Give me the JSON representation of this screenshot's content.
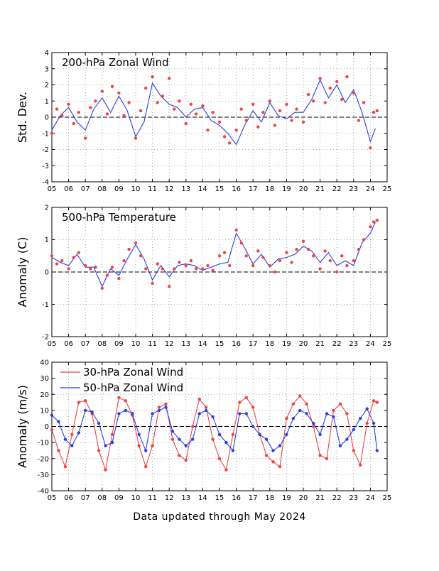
{
  "footer": "Data updated through May 2024",
  "colors": {
    "red": "#ee4444",
    "blue": "#2a3fe0",
    "zero": "#000000",
    "grid": "#999999"
  },
  "chart_data": [
    {
      "type": "scatter",
      "title": "200-hPa Zonal Wind",
      "ylabel": "Std. Dev.",
      "xlim": [
        2005,
        2025
      ],
      "ylim": [
        -4,
        4
      ],
      "x_ticks": [
        "05",
        "06",
        "07",
        "08",
        "09",
        "10",
        "11",
        "12",
        "13",
        "14",
        "15",
        "16",
        "17",
        "18",
        "19",
        "20",
        "21",
        "22",
        "23",
        "24",
        "25"
      ],
      "y_ticks": [
        "-4",
        "-3",
        "-2",
        "-1",
        "0",
        "1",
        "2",
        "3",
        "4"
      ],
      "grid": true,
      "series": [
        {
          "style": "line",
          "color": "#2a3fe0",
          "x": [
            2005.0,
            2005.5,
            2006.0,
            2006.5,
            2007.0,
            2007.5,
            2008.0,
            2008.5,
            2009.0,
            2009.5,
            2010.0,
            2010.5,
            2011.0,
            2011.5,
            2012.0,
            2012.5,
            2013.0,
            2013.5,
            2014.0,
            2014.5,
            2015.0,
            2015.5,
            2016.0,
            2016.5,
            2017.0,
            2017.5,
            2018.0,
            2018.5,
            2019.0,
            2019.5,
            2020.0,
            2020.5,
            2021.0,
            2021.5,
            2022.0,
            2022.5,
            2023.0,
            2023.5,
            2024.0,
            2024.3
          ],
          "y": [
            -0.8,
            0.1,
            0.6,
            -0.3,
            -0.8,
            0.5,
            1.2,
            0.3,
            1.3,
            0.4,
            -1.2,
            -0.3,
            2.1,
            1.3,
            0.8,
            0.6,
            0.0,
            0.5,
            0.6,
            -0.2,
            -0.5,
            -1.0,
            -1.7,
            -0.5,
            0.4,
            -0.3,
            0.9,
            0.1,
            -0.1,
            0.3,
            0.3,
            1.1,
            2.3,
            1.2,
            2.0,
            0.9,
            1.7,
            0.3,
            -1.5,
            -0.7
          ]
        },
        {
          "style": "markers",
          "color": "#ee4444",
          "x": [
            2005.0,
            2005.3,
            2005.6,
            2006.0,
            2006.3,
            2006.6,
            2007.0,
            2007.3,
            2007.6,
            2008.0,
            2008.3,
            2008.6,
            2009.0,
            2009.3,
            2009.6,
            2010.0,
            2010.3,
            2010.6,
            2011.0,
            2011.3,
            2011.6,
            2012.0,
            2012.3,
            2012.6,
            2013.0,
            2013.3,
            2013.6,
            2014.0,
            2014.3,
            2014.6,
            2015.0,
            2015.3,
            2015.6,
            2016.0,
            2016.3,
            2016.6,
            2017.0,
            2017.3,
            2017.6,
            2018.0,
            2018.3,
            2018.6,
            2019.0,
            2019.3,
            2019.6,
            2020.0,
            2020.3,
            2020.6,
            2021.0,
            2021.3,
            2021.6,
            2022.0,
            2022.3,
            2022.6,
            2023.0,
            2023.3,
            2023.6,
            2024.0,
            2024.2,
            2024.4
          ],
          "y": [
            -1.0,
            0.5,
            0.1,
            0.8,
            -0.4,
            0.3,
            -1.3,
            0.6,
            1.0,
            1.6,
            0.2,
            1.9,
            1.5,
            0.1,
            0.9,
            -1.3,
            0.4,
            1.8,
            2.5,
            0.9,
            1.3,
            2.4,
            0.5,
            1.0,
            -0.4,
            0.8,
            0.2,
            0.7,
            -0.8,
            0.3,
            -0.3,
            -1.2,
            -1.6,
            -0.8,
            0.5,
            -0.2,
            0.8,
            -0.6,
            0.3,
            1.0,
            -0.5,
            0.4,
            0.8,
            -0.2,
            0.5,
            -0.3,
            1.4,
            1.0,
            2.4,
            0.9,
            1.8,
            2.2,
            1.1,
            2.5,
            1.5,
            -0.2,
            0.9,
            -1.9,
            0.3,
            0.4
          ]
        }
      ]
    },
    {
      "type": "scatter",
      "title": "500-hPa Temperature",
      "ylabel": "Anomaly (C)",
      "xlim": [
        2005,
        2025
      ],
      "ylim": [
        -2,
        2
      ],
      "x_ticks": [
        "05",
        "06",
        "07",
        "08",
        "09",
        "10",
        "11",
        "12",
        "13",
        "14",
        "15",
        "16",
        "17",
        "18",
        "19",
        "20",
        "21",
        "22",
        "23",
        "24",
        "25"
      ],
      "y_ticks": [
        "-2",
        "-1",
        "0",
        "1",
        "2"
      ],
      "grid": true,
      "series": [
        {
          "style": "line",
          "color": "#2a3fe0",
          "x": [
            2005.0,
            2005.5,
            2006.0,
            2006.5,
            2007.0,
            2007.5,
            2008.0,
            2008.5,
            2009.0,
            2009.5,
            2010.0,
            2010.5,
            2011.0,
            2011.5,
            2012.0,
            2012.5,
            2013.0,
            2013.5,
            2014.0,
            2014.5,
            2015.0,
            2015.5,
            2016.0,
            2016.5,
            2017.0,
            2017.5,
            2018.0,
            2018.5,
            2019.0,
            2019.5,
            2020.0,
            2020.5,
            2021.0,
            2021.5,
            2022.0,
            2022.5,
            2023.0,
            2023.5,
            2024.0,
            2024.3
          ],
          "y": [
            0.45,
            0.3,
            0.2,
            0.55,
            0.15,
            0.15,
            -0.45,
            0.1,
            -0.1,
            0.4,
            0.85,
            0.4,
            -0.25,
            0.2,
            -0.15,
            0.2,
            0.25,
            0.2,
            0.05,
            0.15,
            0.25,
            0.3,
            1.2,
            0.75,
            0.25,
            0.55,
            0.15,
            0.4,
            0.45,
            0.55,
            0.8,
            0.65,
            0.3,
            0.6,
            0.2,
            0.35,
            0.2,
            0.9,
            1.2,
            1.55
          ]
        },
        {
          "style": "markers",
          "color": "#ee4444",
          "x": [
            2005.0,
            2005.3,
            2005.6,
            2006.0,
            2006.3,
            2006.6,
            2007.0,
            2007.3,
            2007.6,
            2008.0,
            2008.3,
            2008.6,
            2009.0,
            2009.3,
            2009.6,
            2010.0,
            2010.3,
            2010.6,
            2011.0,
            2011.3,
            2011.6,
            2012.0,
            2012.3,
            2012.6,
            2013.0,
            2013.3,
            2013.6,
            2014.0,
            2014.3,
            2014.6,
            2015.0,
            2015.3,
            2015.6,
            2016.0,
            2016.3,
            2016.6,
            2017.0,
            2017.3,
            2017.6,
            2018.0,
            2018.3,
            2018.6,
            2019.0,
            2019.3,
            2019.6,
            2020.0,
            2020.3,
            2020.6,
            2021.0,
            2021.3,
            2021.6,
            2022.0,
            2022.3,
            2022.6,
            2023.0,
            2023.3,
            2023.6,
            2024.0,
            2024.2,
            2024.4
          ],
          "y": [
            0.5,
            0.25,
            0.35,
            0.1,
            0.45,
            0.6,
            0.2,
            0.1,
            0.15,
            -0.5,
            -0.1,
            0.15,
            -0.2,
            0.35,
            0.7,
            0.9,
            0.5,
            0.1,
            -0.35,
            0.25,
            0.1,
            -0.45,
            0.1,
            0.3,
            0.2,
            0.35,
            0.1,
            0.1,
            0.2,
            0.05,
            0.5,
            0.6,
            0.2,
            1.3,
            0.9,
            0.5,
            0.2,
            0.65,
            0.45,
            0.2,
            0.0,
            0.35,
            0.6,
            0.3,
            0.7,
            0.95,
            0.7,
            0.5,
            0.1,
            0.65,
            0.35,
            0.0,
            0.5,
            0.2,
            0.35,
            0.7,
            1.0,
            1.4,
            1.55,
            1.6
          ]
        }
      ]
    },
    {
      "type": "scatter",
      "title": "",
      "ylabel": "Anomaly (m/s)",
      "xlim": [
        2005,
        2025
      ],
      "ylim": [
        -40,
        40
      ],
      "x_ticks": [
        "05",
        "06",
        "07",
        "08",
        "09",
        "10",
        "11",
        "12",
        "13",
        "14",
        "15",
        "16",
        "17",
        "18",
        "19",
        "20",
        "21",
        "22",
        "23",
        "24",
        "25"
      ],
      "y_ticks": [
        "-40",
        "-30",
        "-20",
        "-10",
        "0",
        "10",
        "20",
        "30",
        "40"
      ],
      "grid": true,
      "legend": "top-left",
      "series": [
        {
          "name": "30-hPa Zonal Wind",
          "style": "line+markers",
          "color": "#ee4444",
          "x": [
            2005.0,
            2005.4,
            2005.8,
            2006.2,
            2006.6,
            2007.0,
            2007.4,
            2007.8,
            2008.2,
            2008.6,
            2009.0,
            2009.4,
            2009.8,
            2010.2,
            2010.6,
            2011.0,
            2011.4,
            2011.8,
            2012.2,
            2012.6,
            2013.0,
            2013.4,
            2013.8,
            2014.2,
            2014.6,
            2015.0,
            2015.4,
            2015.8,
            2016.2,
            2016.6,
            2017.0,
            2017.4,
            2017.8,
            2018.2,
            2018.6,
            2019.0,
            2019.4,
            2019.8,
            2020.2,
            2020.6,
            2021.0,
            2021.4,
            2021.8,
            2022.2,
            2022.6,
            2023.0,
            2023.4,
            2023.8,
            2024.2,
            2024.4
          ],
          "y": [
            -2,
            -15,
            -25,
            -5,
            15,
            16,
            8,
            -15,
            -27,
            -5,
            18,
            16,
            7,
            -12,
            -25,
            -12,
            12,
            14,
            -8,
            -18,
            -21,
            0,
            17,
            12,
            -8,
            -20,
            -27,
            -5,
            15,
            18,
            12,
            -5,
            -18,
            -22,
            -25,
            5,
            14,
            19,
            14,
            0,
            -18,
            -20,
            10,
            14,
            8,
            -15,
            -24,
            2,
            16,
            15
          ]
        },
        {
          "name": "50-hPa Zonal Wind",
          "style": "line+markers",
          "color": "#2a3fe0",
          "x": [
            2005.0,
            2005.4,
            2005.8,
            2006.2,
            2006.6,
            2007.0,
            2007.4,
            2007.8,
            2008.2,
            2008.6,
            2009.0,
            2009.4,
            2009.8,
            2010.2,
            2010.6,
            2011.0,
            2011.4,
            2011.8,
            2012.2,
            2012.6,
            2013.0,
            2013.4,
            2013.8,
            2014.2,
            2014.6,
            2015.0,
            2015.4,
            2015.8,
            2016.2,
            2016.6,
            2017.0,
            2017.4,
            2017.8,
            2018.2,
            2018.6,
            2019.0,
            2019.4,
            2019.8,
            2020.2,
            2020.6,
            2021.0,
            2021.4,
            2021.8,
            2022.2,
            2022.6,
            2023.0,
            2023.4,
            2023.8,
            2024.2,
            2024.4
          ],
          "y": [
            7,
            3,
            -8,
            -12,
            -4,
            10,
            9,
            2,
            -12,
            -10,
            8,
            10,
            8,
            -5,
            -15,
            8,
            10,
            12,
            -3,
            -8,
            -12,
            -8,
            8,
            10,
            6,
            -5,
            -10,
            -15,
            8,
            8,
            0,
            -5,
            -8,
            -15,
            -12,
            -5,
            5,
            10,
            8,
            2,
            -5,
            8,
            6,
            -12,
            -8,
            -2,
            5,
            11,
            2,
            -15
          ]
        }
      ]
    }
  ]
}
